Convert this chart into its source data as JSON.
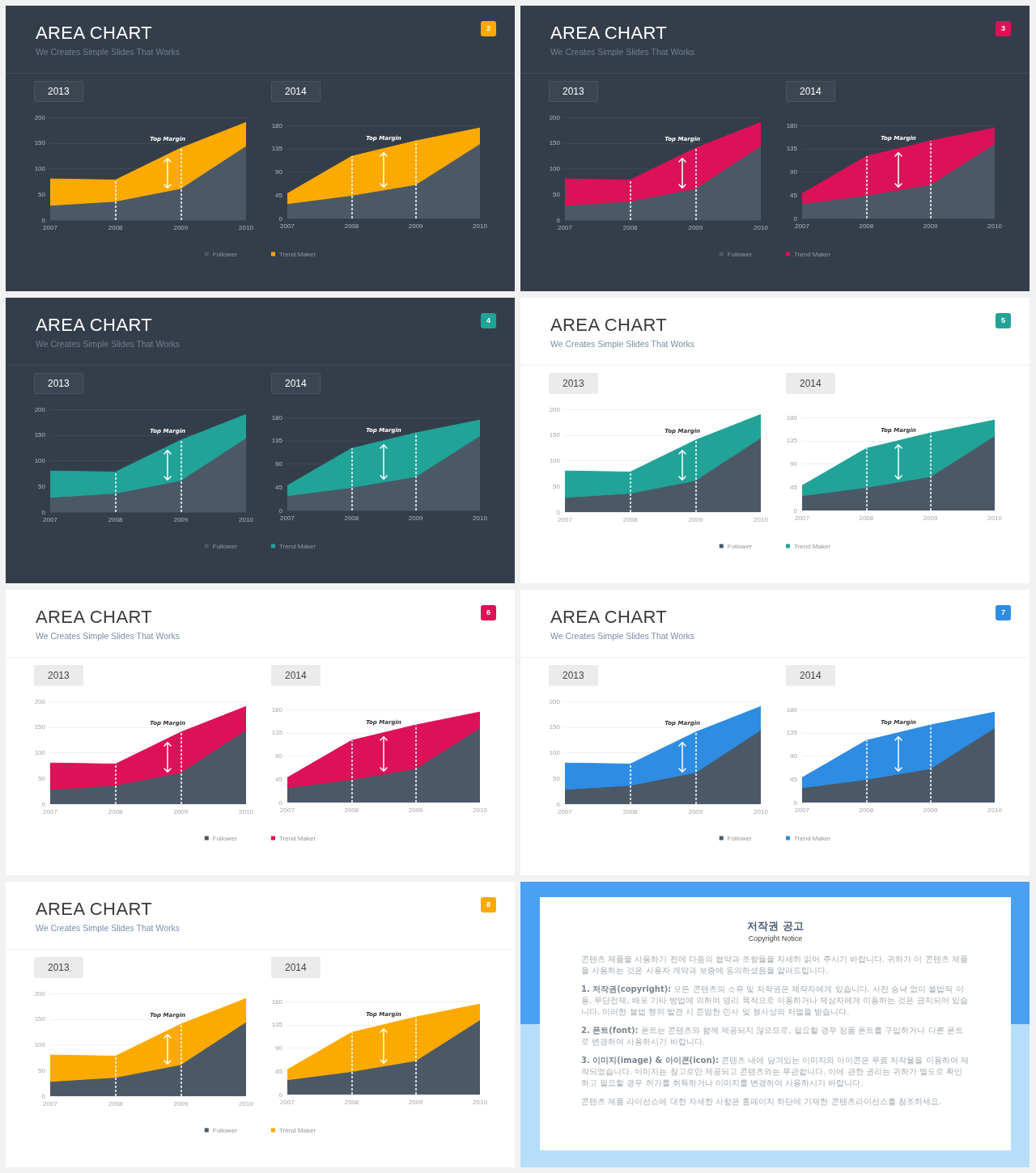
{
  "chart_data": [
    {
      "type": "area",
      "title": "2013",
      "categories": [
        "2007",
        "2008",
        "2009",
        "2010"
      ],
      "series": [
        {
          "name": "Follower",
          "color": "#4b5967",
          "values": [
            27,
            35,
            60,
            143
          ]
        },
        {
          "color": "#fdaa00",
          "values": [
            80,
            78,
            140,
            190
          ]
        }
      ],
      "ylim": [
        0,
        200
      ],
      "yticks": [
        0,
        50,
        100,
        150,
        200
      ],
      "grid": "y",
      "legend": "bottom right",
      "ref_lines": [
        {
          "axis": "x",
          "value": "2008",
          "color": "#ffffff",
          "line_style": "dashed"
        },
        {
          "axis": "x",
          "value": "2009",
          "color": "#ffffff",
          "line_style": "dashed"
        }
      ],
      "annotations": [
        "AREA CHART",
        "We Creates Simple Slides That Works",
        "2",
        "Top Margin"
      ]
    },
    {
      "type": "area",
      "title": "2014",
      "categories": [
        "2007",
        "2008",
        "2009",
        "2010"
      ],
      "series": [
        {
          "color": "#4b5967",
          "values": [
            27,
            43,
            64,
            143
          ]
        },
        {
          "name": "Trend Maker",
          "color": "#fdaa00",
          "values": [
            48,
            120,
            150,
            175
          ]
        }
      ],
      "ylim": [
        0,
        180
      ],
      "yticks": [
        0,
        45,
        90,
        135,
        180
      ],
      "grid": "y",
      "legend": "bottom left",
      "ref_lines": [
        {
          "axis": "x",
          "value": "2008",
          "color": "#ffffff",
          "line_style": "dashed"
        },
        {
          "axis": "x",
          "value": "2009",
          "color": "#ffffff",
          "line_style": "dashed"
        }
      ],
      "annotations": [
        "Top Margin"
      ]
    },
    {
      "type": "area",
      "title": "2013",
      "categories": [
        "2007",
        "2008",
        "2009",
        "2010"
      ],
      "series": [
        {
          "name": "Follower",
          "color": "#4b5967",
          "values": [
            27,
            35,
            60,
            143
          ]
        },
        {
          "color": "#dd1158",
          "values": [
            80,
            78,
            140,
            190
          ]
        }
      ],
      "ylim": [
        0,
        200
      ],
      "yticks": [
        0,
        50,
        100,
        150,
        200
      ],
      "grid": "y",
      "legend": "bottom right",
      "ref_lines": [
        {
          "axis": "x",
          "value": "2008",
          "color": "#ffffff",
          "line_style": "dashed"
        },
        {
          "axis": "x",
          "value": "2009",
          "color": "#ffffff",
          "line_style": "dashed"
        }
      ],
      "annotations": [
        "AREA CHART",
        "We Creates Simple Slides That Works",
        "3",
        "Top Margin"
      ]
    },
    {
      "type": "area",
      "title": "2014",
      "categories": [
        "2007",
        "2008",
        "2009",
        "2010"
      ],
      "series": [
        {
          "color": "#4b5967",
          "values": [
            27,
            43,
            64,
            143
          ]
        },
        {
          "name": "Trend Maker",
          "color": "#dd1158",
          "values": [
            48,
            120,
            150,
            175
          ]
        }
      ],
      "ylim": [
        0,
        180
      ],
      "yticks": [
        0,
        45,
        90,
        135,
        180
      ],
      "grid": "y",
      "legend": "bottom left",
      "ref_lines": [
        {
          "axis": "x",
          "value": "2008",
          "color": "#ffffff",
          "line_style": "dashed"
        },
        {
          "axis": "x",
          "value": "2009",
          "color": "#ffffff",
          "line_style": "dashed"
        }
      ],
      "annotations": [
        "Top Margin"
      ]
    },
    {
      "type": "area",
      "title": "2013",
      "categories": [
        "2007",
        "2008",
        "2009",
        "2010"
      ],
      "series": [
        {
          "name": "Follower",
          "color": "#4b5967",
          "values": [
            27,
            35,
            60,
            143
          ]
        },
        {
          "color": "#21a398",
          "values": [
            80,
            78,
            140,
            190
          ]
        }
      ],
      "ylim": [
        0,
        200
      ],
      "yticks": [
        0,
        50,
        100,
        150,
        200
      ],
      "grid": "y",
      "legend": "bottom right",
      "ref_lines": [
        {
          "axis": "x",
          "value": "2008",
          "color": "#ffffff",
          "line_style": "dashed"
        },
        {
          "axis": "x",
          "value": "2009",
          "color": "#ffffff",
          "line_style": "dashed"
        }
      ],
      "annotations": [
        "AREA CHART",
        "We Creates Simple Slides That Works",
        "4",
        "Top Margin"
      ]
    },
    {
      "type": "area",
      "title": "2014",
      "categories": [
        "2007",
        "2008",
        "2009",
        "2010"
      ],
      "series": [
        {
          "color": "#4b5967",
          "values": [
            27,
            43,
            64,
            143
          ]
        },
        {
          "name": "Trend Maker",
          "color": "#21a398",
          "values": [
            48,
            120,
            150,
            175
          ]
        }
      ],
      "ylim": [
        0,
        180
      ],
      "yticks": [
        0,
        45,
        90,
        135,
        180
      ],
      "grid": "y",
      "legend": "bottom left",
      "ref_lines": [
        {
          "axis": "x",
          "value": "2008",
          "color": "#ffffff",
          "line_style": "dashed"
        },
        {
          "axis": "x",
          "value": "2009",
          "color": "#ffffff",
          "line_style": "dashed"
        }
      ],
      "annotations": [
        "Top Margin"
      ]
    },
    {
      "type": "area",
      "title": "2013",
      "categories": [
        "2007",
        "2008",
        "2009",
        "2010"
      ],
      "series": [
        {
          "name": "Follower",
          "color": "#4b5967",
          "values": [
            27,
            35,
            60,
            143
          ]
        },
        {
          "color": "#21a398",
          "values": [
            80,
            78,
            140,
            190
          ]
        }
      ],
      "ylim": [
        0,
        200
      ],
      "yticks": [
        0,
        50,
        100,
        150,
        200
      ],
      "grid": "y",
      "legend": "bottom right",
      "ref_lines": [
        {
          "axis": "x",
          "value": "2008",
          "color": "#ffffff",
          "line_style": "dashed"
        },
        {
          "axis": "x",
          "value": "2009",
          "color": "#ffffff",
          "line_style": "dashed"
        }
      ],
      "annotations": [
        "AREA CHART",
        "We Creates Simple Slides That Works",
        "5",
        "Top Margin"
      ]
    },
    {
      "type": "area",
      "title": "2014",
      "categories": [
        "2007",
        "2008",
        "2009",
        "2010"
      ],
      "series": [
        {
          "color": "#4b5967",
          "values": [
            27,
            43,
            64,
            143
          ]
        },
        {
          "name": "Trend Maker",
          "color": "#21a398",
          "values": [
            48,
            120,
            150,
            175
          ]
        }
      ],
      "ylim": [
        0,
        180
      ],
      "yticks": [
        0,
        45,
        90,
        135,
        180
      ],
      "grid": "y",
      "legend": "bottom left",
      "ref_lines": [
        {
          "axis": "x",
          "value": "2008",
          "color": "#ffffff",
          "line_style": "dashed"
        },
        {
          "axis": "x",
          "value": "2009",
          "color": "#ffffff",
          "line_style": "dashed"
        }
      ],
      "annotations": [
        "Top Margin"
      ]
    },
    {
      "type": "area",
      "title": "2013",
      "categories": [
        "2007",
        "2008",
        "2009",
        "2010"
      ],
      "series": [
        {
          "name": "Follower",
          "color": "#4b5967",
          "values": [
            27,
            35,
            60,
            143
          ]
        },
        {
          "color": "#dd1158",
          "values": [
            80,
            78,
            140,
            190
          ]
        }
      ],
      "ylim": [
        0,
        200
      ],
      "yticks": [
        0,
        50,
        100,
        150,
        200
      ],
      "grid": "y",
      "legend": "bottom right",
      "ref_lines": [
        {
          "axis": "x",
          "value": "2008",
          "color": "#ffffff",
          "line_style": "dashed"
        },
        {
          "axis": "x",
          "value": "2009",
          "color": "#ffffff",
          "line_style": "dashed"
        }
      ],
      "annotations": [
        "AREA CHART",
        "We Creates Simple Slides That Works",
        "6",
        "Top Margin"
      ]
    },
    {
      "type": "area",
      "title": "2014",
      "categories": [
        "2007",
        "2008",
        "2009",
        "2010"
      ],
      "series": [
        {
          "color": "#4b5967",
          "values": [
            27,
            43,
            64,
            143
          ]
        },
        {
          "name": "Trend Maker",
          "color": "#dd1158",
          "values": [
            48,
            120,
            150,
            175
          ]
        }
      ],
      "ylim": [
        0,
        180
      ],
      "yticks": [
        0,
        45,
        90,
        135,
        180
      ],
      "grid": "y",
      "legend": "bottom left",
      "ref_lines": [
        {
          "axis": "x",
          "value": "2008",
          "color": "#ffffff",
          "line_style": "dashed"
        },
        {
          "axis": "x",
          "value": "2009",
          "color": "#ffffff",
          "line_style": "dashed"
        }
      ],
      "annotations": [
        "Top Margin"
      ]
    },
    {
      "type": "area",
      "title": "2013",
      "categories": [
        "2007",
        "2008",
        "2009",
        "2010"
      ],
      "series": [
        {
          "name": "Follower",
          "color": "#4b5967",
          "values": [
            27,
            35,
            60,
            143
          ]
        },
        {
          "color": "#2e8ce3",
          "values": [
            80,
            78,
            140,
            190
          ]
        }
      ],
      "ylim": [
        0,
        200
      ],
      "yticks": [
        0,
        50,
        100,
        150,
        200
      ],
      "grid": "y",
      "legend": "bottom right",
      "ref_lines": [
        {
          "axis": "x",
          "value": "2008",
          "color": "#ffffff",
          "line_style": "dashed"
        },
        {
          "axis": "x",
          "value": "2009",
          "color": "#ffffff",
          "line_style": "dashed"
        }
      ],
      "annotations": [
        "AREA CHART",
        "We Creates Simple Slides That Works",
        "7",
        "Top Margin"
      ]
    },
    {
      "type": "area",
      "title": "2014",
      "categories": [
        "2007",
        "2008",
        "2009",
        "2010"
      ],
      "series": [
        {
          "color": "#4b5967",
          "values": [
            27,
            43,
            64,
            143
          ]
        },
        {
          "name": "Trend Maker",
          "color": "#2e8ce3",
          "values": [
            48,
            120,
            150,
            175
          ]
        }
      ],
      "ylim": [
        0,
        180
      ],
      "yticks": [
        0,
        45,
        90,
        135,
        180
      ],
      "grid": "y",
      "legend": "bottom left",
      "ref_lines": [
        {
          "axis": "x",
          "value": "2008",
          "color": "#ffffff",
          "line_style": "dashed"
        },
        {
          "axis": "x",
          "value": "2009",
          "color": "#ffffff",
          "line_style": "dashed"
        }
      ],
      "annotations": [
        "Top Margin"
      ]
    },
    {
      "type": "area",
      "title": "2013",
      "categories": [
        "2007",
        "2008",
        "2009",
        "2010"
      ],
      "series": [
        {
          "name": "Follower",
          "color": "#4b5967",
          "values": [
            27,
            35,
            60,
            143
          ]
        },
        {
          "color": "#fdaa00",
          "values": [
            80,
            78,
            140,
            190
          ]
        }
      ],
      "ylim": [
        0,
        200
      ],
      "yticks": [
        0,
        50,
        100,
        150,
        200
      ],
      "grid": "y",
      "legend": "bottom right",
      "ref_lines": [
        {
          "axis": "x",
          "value": "2008",
          "color": "#ffffff",
          "line_style": "dashed"
        },
        {
          "axis": "x",
          "value": "2009",
          "color": "#ffffff",
          "line_style": "dashed"
        }
      ],
      "annotations": [
        "AREA CHART",
        "We Creates Simple Slides That Works",
        "8",
        "Top Margin"
      ]
    },
    {
      "type": "area",
      "title": "2014",
      "categories": [
        "2007",
        "2008",
        "2009",
        "2010"
      ],
      "series": [
        {
          "color": "#4b5967",
          "values": [
            27,
            43,
            64,
            143
          ]
        },
        {
          "name": "Trend Maker",
          "color": "#fdaa00",
          "values": [
            48,
            120,
            150,
            175
          ]
        }
      ],
      "ylim": [
        0,
        180
      ],
      "yticks": [
        0,
        45,
        90,
        135,
        180
      ],
      "grid": "y",
      "legend": "bottom left",
      "ref_lines": [
        {
          "axis": "x",
          "value": "2008",
          "color": "#ffffff",
          "line_style": "dashed"
        },
        {
          "axis": "x",
          "value": "2009",
          "color": "#ffffff",
          "line_style": "dashed"
        }
      ],
      "annotations": [
        "Top Margin"
      ]
    },
    {
      "type": "other",
      "title": "저작권 공고",
      "subtitle": "Copyright Notice",
      "annotations": [
        "콘텐츠 제품을 사용하기 전에 다음의 협약과 조항들을 자세히 읽어 주시기 바랍니다. 귀하가 이 콘텐츠 제품을 사용하는 것은 사용자 계약과 보증에 동의하셨음을 알려드립니다.",
        "1. 저작권(copyright): 모든 콘텐츠의 소유 및 저작권은 제작자에게 있습니다. 사전 승낙 없이 불법적 이용, 무단전재, 배포 기타 방법에 의하여 영리 목적으로 이용하거나 제삼자에게 이용하는 것은 금지되어 있습니다. 이러한 불법 행위 발견 시 준엄한 민사 및 형사상의 처벌을 받습니다.",
        "2. 폰트(font): 폰트는 콘텐츠와 함께 제공되지 않으므로, 필요할 경우 정품 폰트를 구입하거나 다른 폰트로 변경하여 사용하시기 바랍니다.",
        "3. 이미지(image) & 아이콘(icon): 콘텐츠 내에 담겨있는 이미지와 아이콘은 무료 저작물을 이용하여 제작되었습니다. 이미지는 참고로만 제공되고 콘텐츠와는 무관합니다. 이에 관한 권리는 귀하가 별도로 확인하고 필요할 경우 허가를 취득하거나 이미지를 변경하여 사용하시기 바랍니다.",
        "콘텐츠 제품 라이선스에 대한 자세한 사항은 홈페이지 하단에 기재한 콘텐츠라이선스를 참조하세요."
      ]
    }
  ]
}
